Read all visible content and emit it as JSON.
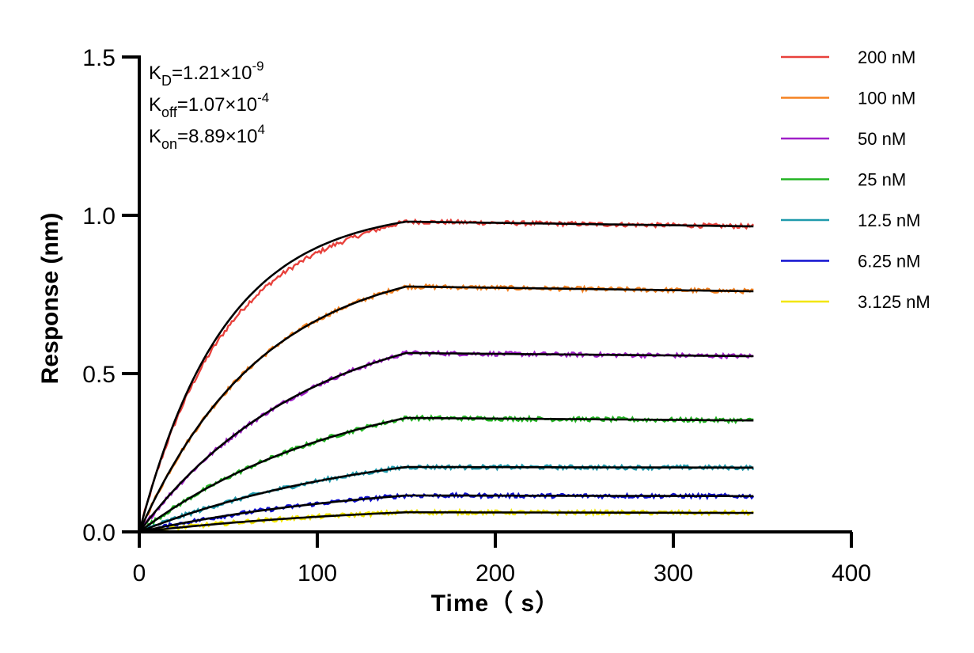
{
  "chart_data": {
    "type": "line",
    "xlabel": "Time（ s）",
    "ylabel": "Response (nm)",
    "xlim": [
      0,
      400
    ],
    "ylim": [
      0,
      1.5
    ],
    "x_ticks": [
      "0",
      "100",
      "200",
      "300",
      "400"
    ],
    "y_ticks": [
      "0.0",
      "0.5",
      "1.0",
      "1.5"
    ],
    "grid": false,
    "legend_position": "top-right",
    "annotations": {
      "kd": {
        "base": "K",
        "sub": "D",
        "rest": "=1.21×10",
        "exp": "-9"
      },
      "koff": {
        "base": "K",
        "sub": "off",
        "rest": "=1.07×10",
        "exp": "-4"
      },
      "kon": {
        "base": "K",
        "sub": "on",
        "rest": "=8.89×10",
        "exp": "4"
      }
    },
    "association_end": 150,
    "x_end": 345,
    "series": [
      {
        "name": "200 nM",
        "color": "#e8413c",
        "plateau": 0.98,
        "end": 0.965,
        "k_assoc": 0.021
      },
      {
        "name": "100 nM",
        "color": "#f58220",
        "plateau": 0.775,
        "end": 0.76,
        "k_assoc": 0.0145
      },
      {
        "name": "50 nM",
        "color": "#a020c8",
        "plateau": 0.565,
        "end": 0.555,
        "k_assoc": 0.0105
      },
      {
        "name": "25 nM",
        "color": "#22b422",
        "plateau": 0.36,
        "end": 0.352,
        "k_assoc": 0.0085
      },
      {
        "name": "12.5 nM",
        "color": "#1f9aac",
        "plateau": 0.205,
        "end": 0.203,
        "k_assoc": 0.0075
      },
      {
        "name": "6.25 nM",
        "color": "#1010d0",
        "plateau": 0.115,
        "end": 0.113,
        "k_assoc": 0.007
      },
      {
        "name": "3.125 nM",
        "color": "#f2e600",
        "plateau": 0.062,
        "end": 0.06,
        "k_assoc": 0.0068
      }
    ],
    "fit_color": "#000000"
  }
}
